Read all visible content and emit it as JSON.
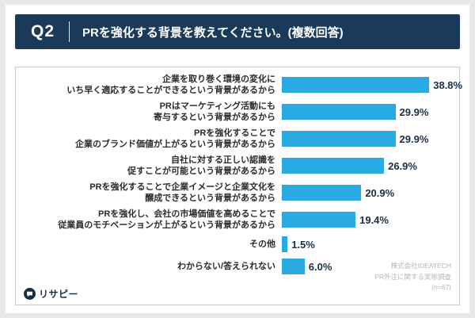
{
  "header": {
    "question_no": "Q2",
    "title": "PRを強化する背景を教えてください。(複数回答)"
  },
  "chart_data": {
    "type": "bar",
    "orientation": "horizontal",
    "title": "PRを強化する背景を教えてください。(複数回答)",
    "categories": [
      [
        "企業を取り巻く環境の変化に",
        "いち早く適応することができるという背景があるから"
      ],
      [
        "PRはマーケティング活動にも",
        "寄与するという背景があるから"
      ],
      [
        "PRを強化することで",
        "企業のブランド価値が上がるという背景があるから"
      ],
      [
        "自社に対する正しい認識を",
        "促すことが可能という背景があるから"
      ],
      [
        "PRを強化することで企業イメージと企業文化を",
        "醸成できるという背景があるから"
      ],
      [
        "PRを強化し、会社の市場価値を高めることで",
        "従業員のモチベーションが上がるという背景があるから"
      ],
      [
        "その他"
      ],
      [
        "わからない/答えられない"
      ]
    ],
    "values": [
      38.8,
      29.9,
      29.9,
      26.9,
      20.9,
      19.4,
      1.5,
      6.0
    ],
    "value_suffix": "%",
    "xlim": [
      0,
      45
    ],
    "grid": false,
    "legend": "none",
    "bar_color": "#29aae3"
  },
  "footer": {
    "logo_text": "リサピー",
    "source_lines": [
      "株式会社IDEATECH",
      "PR外注に関する実態調査",
      "(n=67)"
    ]
  },
  "colors": {
    "header_bg": "#1a3a5c",
    "bar": "#29aae3",
    "value_label": "#1a2e4a",
    "credit_text": "#b5b5b5"
  }
}
